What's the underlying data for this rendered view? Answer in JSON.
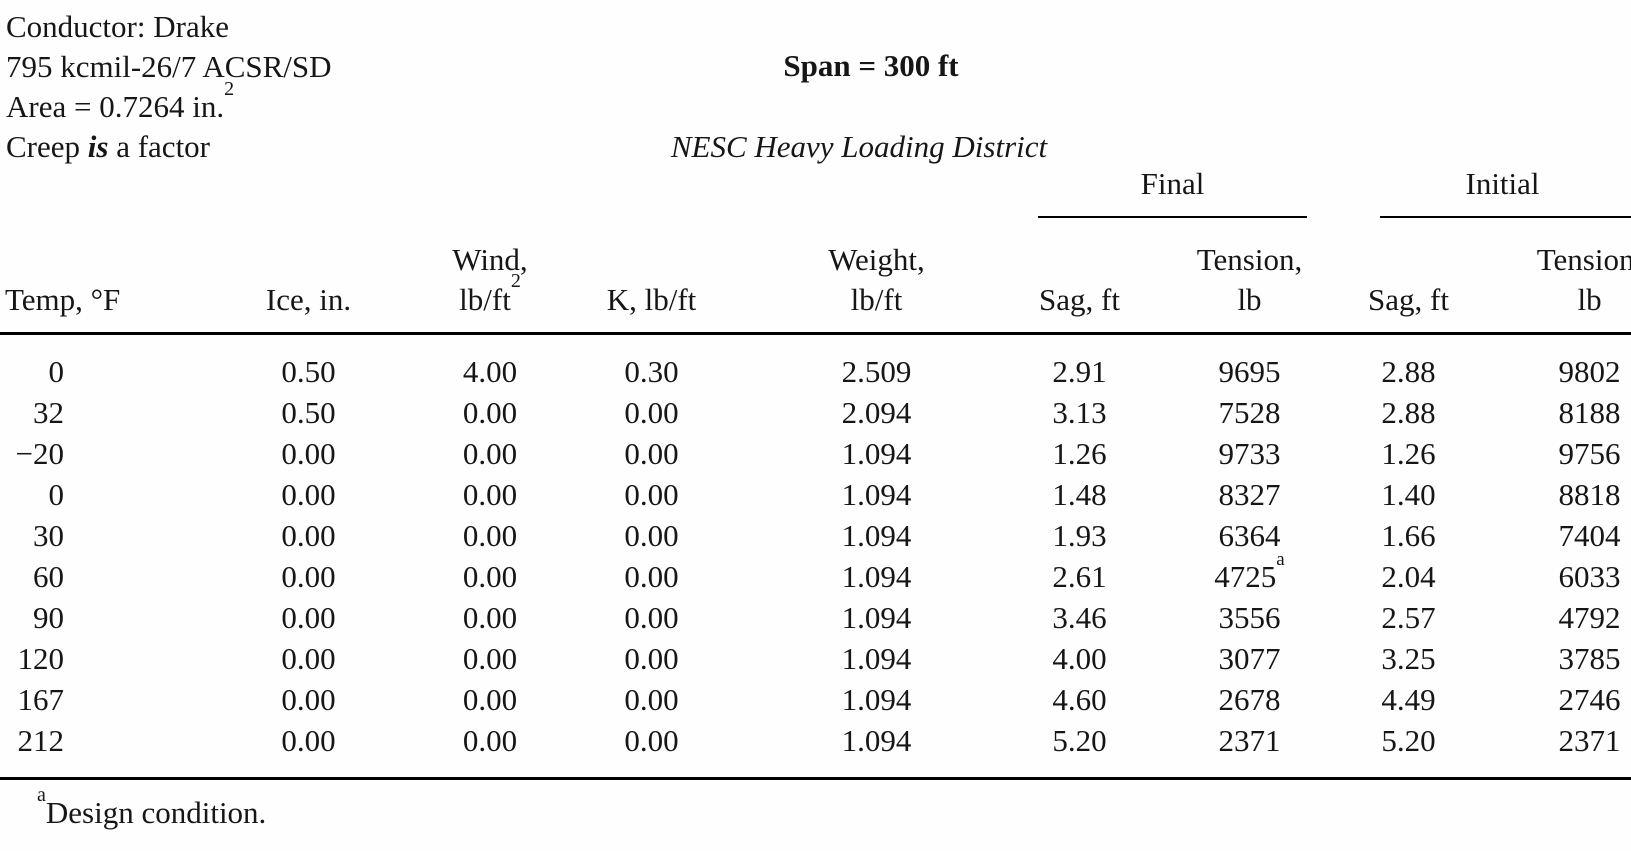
{
  "page": {
    "info": {
      "line1": "Conductor: Drake",
      "line2": "795 kcmil-26/7 ACSR/SD",
      "area_text": "Area = 0.7264 in.",
      "area_sup": "2",
      "creep_pre": "Creep ",
      "creep_emph": "is",
      "creep_post": " a factor"
    },
    "center": {
      "span_label": "Span = 300 ft",
      "district_label": "NESC Heavy Loading District"
    },
    "footnote": {
      "marker": "a",
      "text": "Design condition."
    }
  },
  "table": {
    "group_headers": [
      {
        "label": "Final"
      },
      {
        "label": "Initial"
      }
    ],
    "columns": [
      {
        "line1": "",
        "line2": "Temp, °F",
        "line2_sup": ""
      },
      {
        "line1": "",
        "line2": "Ice, in.",
        "line2_sup": ""
      },
      {
        "line1": "Wind,",
        "line2": "lb/ft",
        "line2_sup": "2"
      },
      {
        "line1": "",
        "line2": "K, lb/ft",
        "line2_sup": ""
      },
      {
        "line1": "Weight,",
        "line2": "lb/ft",
        "line2_sup": ""
      },
      {
        "line1": "",
        "line2": "Sag, ft",
        "line2_sup": ""
      },
      {
        "line1": "Tension,",
        "line2": "lb",
        "line2_sup": ""
      },
      {
        "line1": "",
        "line2": "Sag, ft",
        "line2_sup": ""
      },
      {
        "line1": "Tension,",
        "line2": "lb",
        "line2_sup": ""
      }
    ],
    "rows": [
      [
        "0",
        "0.50",
        "4.00",
        "0.30",
        "2.509",
        "2.91",
        "9695",
        "2.88",
        "9802"
      ],
      [
        "32",
        "0.50",
        "0.00",
        "0.00",
        "2.094",
        "3.13",
        "7528",
        "2.88",
        "8188"
      ],
      [
        "−20",
        "0.00",
        "0.00",
        "0.00",
        "1.094",
        "1.26",
        "9733",
        "1.26",
        "9756"
      ],
      [
        "0",
        "0.00",
        "0.00",
        "0.00",
        "1.094",
        "1.48",
        "8327",
        "1.40",
        "8818"
      ],
      [
        "30",
        "0.00",
        "0.00",
        "0.00",
        "1.094",
        "1.93",
        "6364",
        "1.66",
        "7404"
      ],
      [
        "60",
        "0.00",
        "0.00",
        "0.00",
        "1.094",
        "2.61",
        "4725",
        "2.04",
        "6033"
      ],
      [
        "90",
        "0.00",
        "0.00",
        "0.00",
        "1.094",
        "3.46",
        "3556",
        "2.57",
        "4792"
      ],
      [
        "120",
        "0.00",
        "0.00",
        "0.00",
        "1.094",
        "4.00",
        "3077",
        "3.25",
        "3785"
      ],
      [
        "167",
        "0.00",
        "0.00",
        "0.00",
        "1.094",
        "4.60",
        "2678",
        "4.49",
        "2746"
      ],
      [
        "212",
        "0.00",
        "0.00",
        "0.00",
        "1.094",
        "5.20",
        "2371",
        "5.20",
        "2371"
      ]
    ],
    "superscript_cell": {
      "row": 5,
      "col": 6,
      "marker": "a"
    }
  }
}
